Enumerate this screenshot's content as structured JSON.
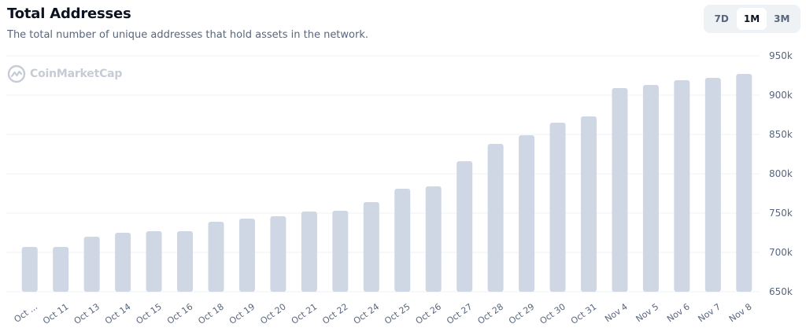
{
  "header": {
    "title": "Total Addresses",
    "subtitle": "The total number of unique addresses that hold assets in the network."
  },
  "range_buttons": [
    {
      "label": "7D",
      "active": false
    },
    {
      "label": "1M",
      "active": true
    },
    {
      "label": "3M",
      "active": false
    }
  ],
  "watermark": {
    "text": "CoinMarketCap",
    "icon": "coinmarketcap-logo-icon"
  },
  "colors": {
    "bar": "#cfd6e4",
    "grid": "#eef0f3",
    "axis_text": "#58667e"
  },
  "chart_data": {
    "type": "bar",
    "title": "Total Addresses",
    "categories": [
      "Oct ...",
      "Oct 11",
      "Oct 13",
      "Oct 14",
      "Oct 15",
      "Oct 16",
      "Oct 18",
      "Oct 19",
      "Oct 20",
      "Oct 21",
      "Oct 22",
      "Oct 24",
      "Oct 25",
      "Oct 26",
      "Oct 27",
      "Oct 28",
      "Oct 29",
      "Oct 30",
      "Oct 31",
      "Nov 4",
      "Nov 5",
      "Nov 6",
      "Nov 7",
      "Nov 8"
    ],
    "values": [
      707000,
      707000,
      720000,
      725000,
      727000,
      727000,
      739000,
      743000,
      746000,
      752000,
      753000,
      764000,
      781000,
      784000,
      816000,
      838000,
      849000,
      865000,
      873000,
      909000,
      913000,
      919000,
      922000,
      927000
    ],
    "ylim": [
      650000,
      950000
    ],
    "yticks": [
      950000,
      900000,
      850000,
      800000,
      750000,
      700000,
      650000
    ],
    "ytick_labels": [
      "950k",
      "900k",
      "850k",
      "800k",
      "750k",
      "700k",
      "650k"
    ],
    "y_axis_side": "right",
    "grid": true,
    "legend": "none"
  }
}
